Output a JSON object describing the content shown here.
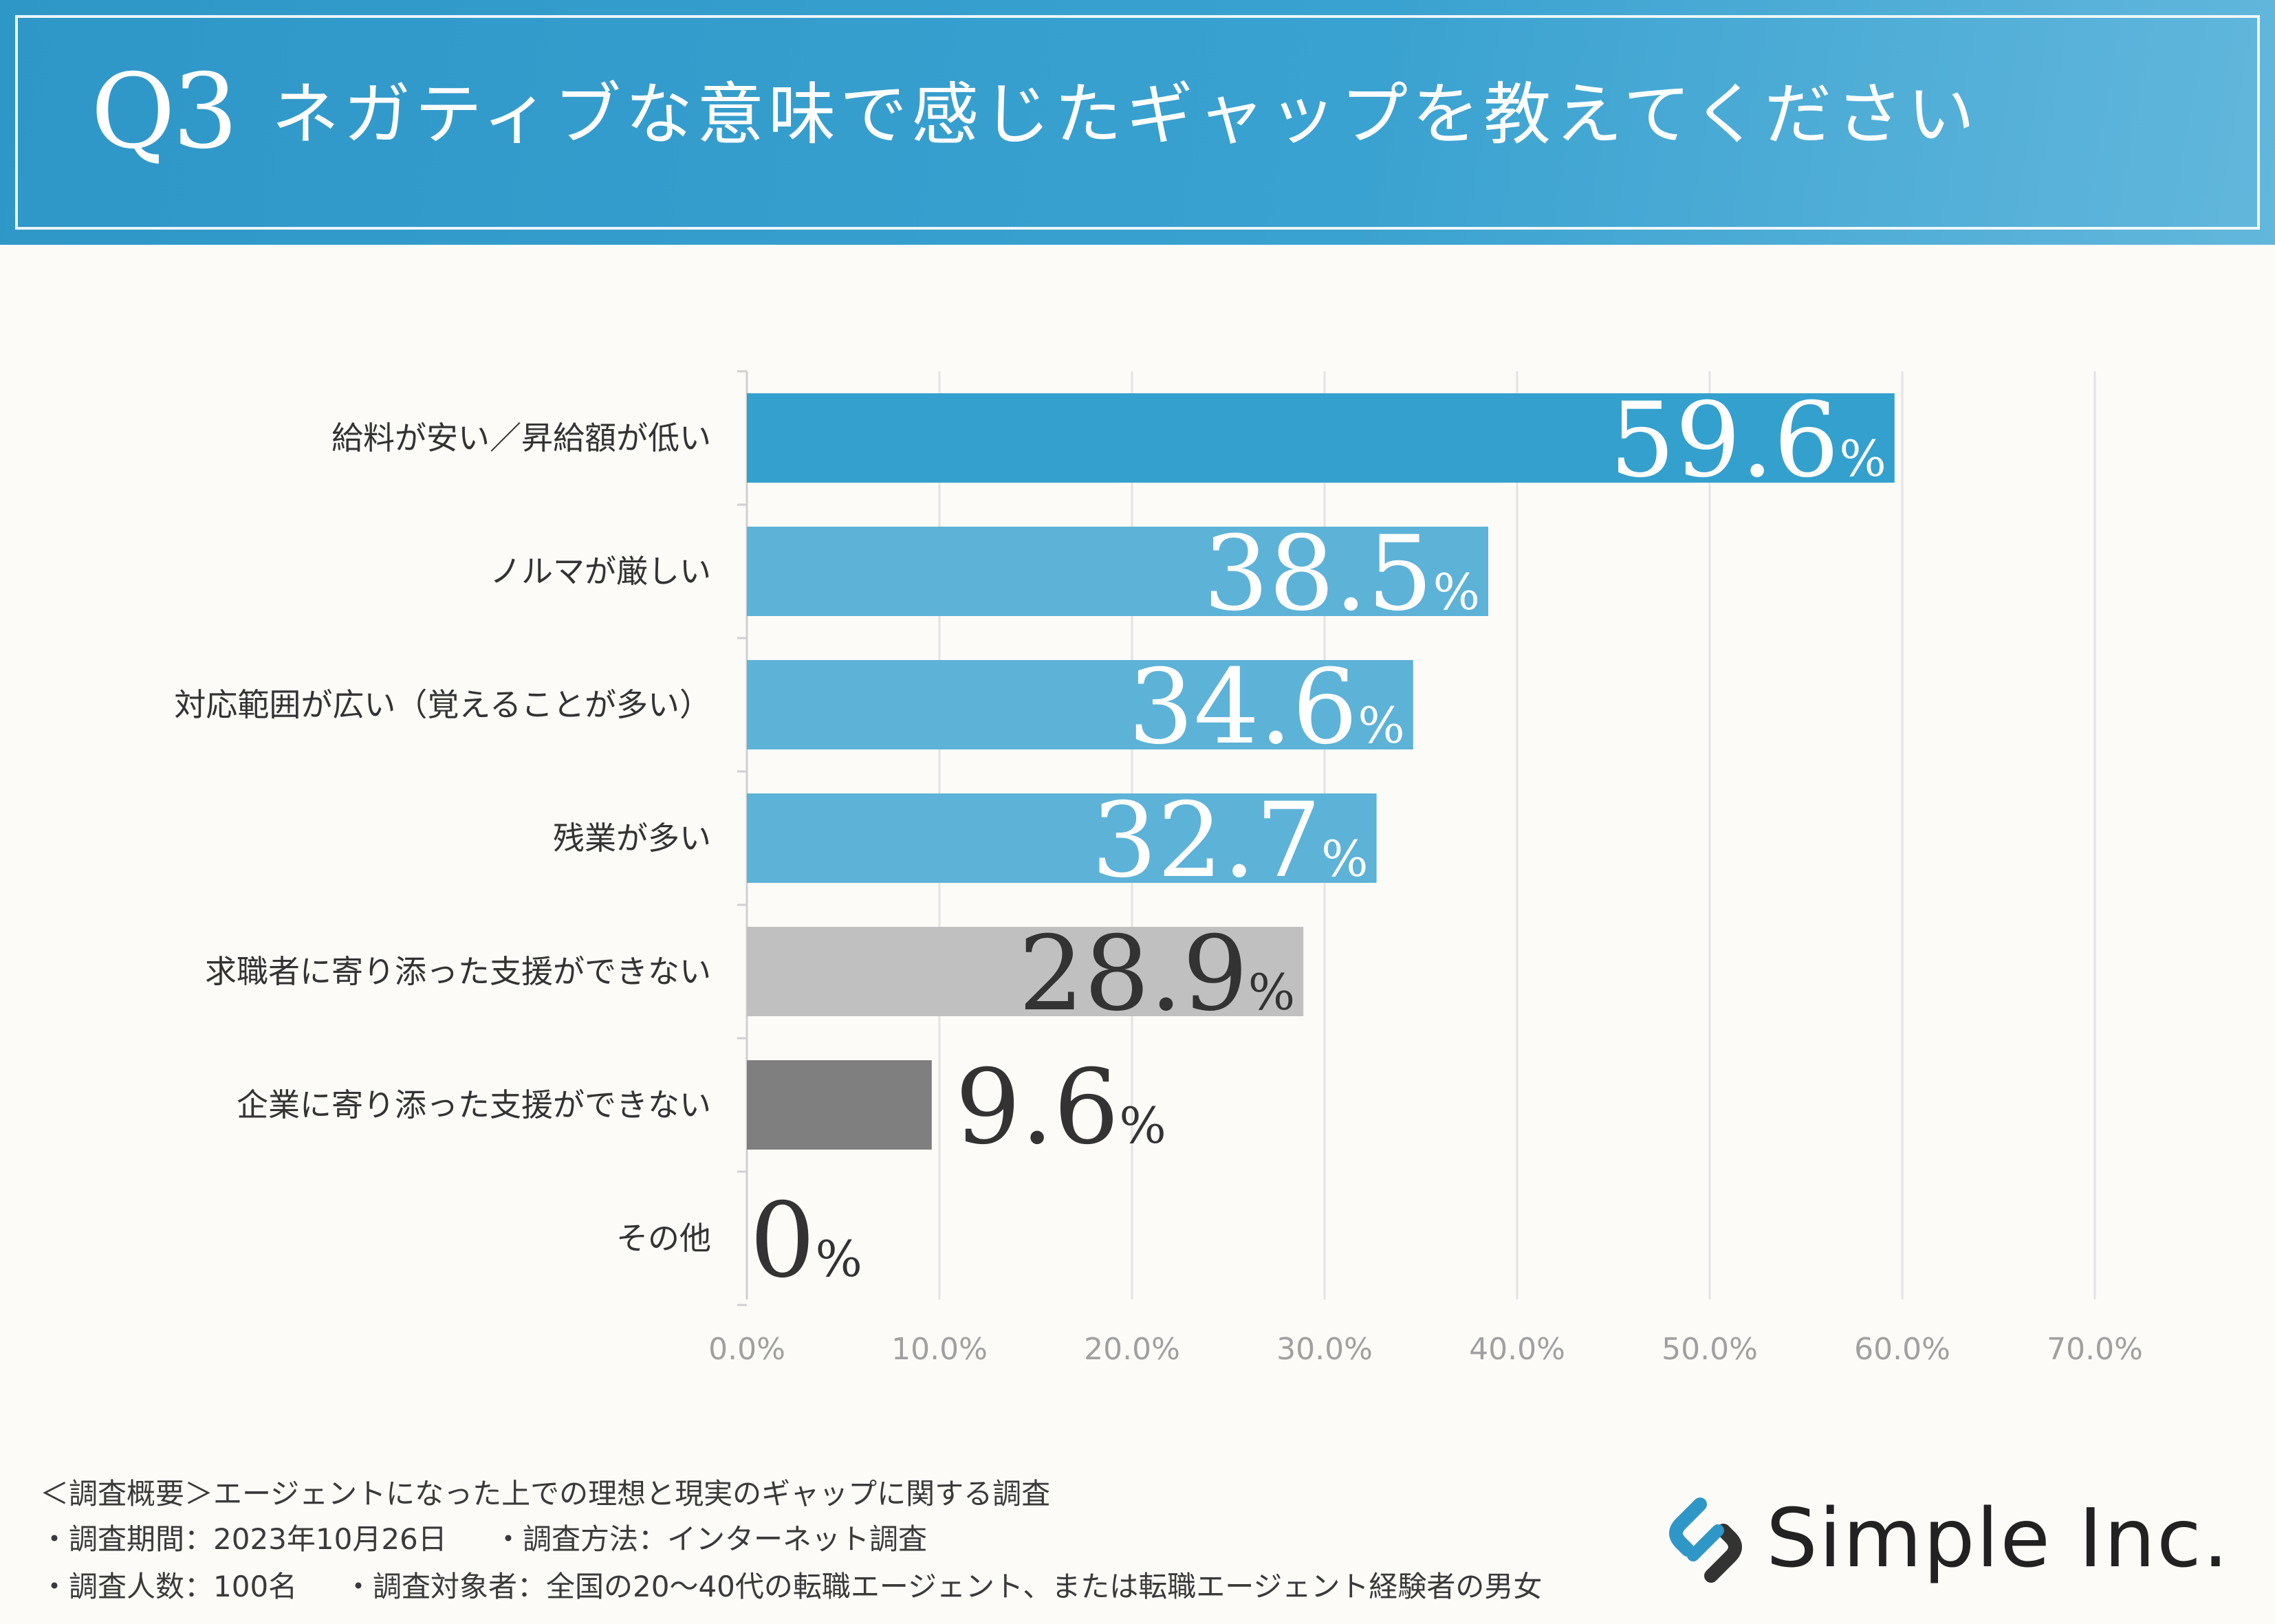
{
  "header": {
    "question_number": "Q3",
    "title": "ネガティブな意味で感じたギャップを教えてください"
  },
  "chart_data": {
    "type": "bar",
    "orientation": "horizontal",
    "title": "ネガティブな意味で感じたギャップを教えてください",
    "categories": [
      "給料が安い／昇給額が低い",
      "ノルマが厳しい",
      "対応範囲が広い（覚えることが多い）",
      "残業が多い",
      "求職者に寄り添った支援ができない",
      "企業に寄り添った支援ができない",
      "その他"
    ],
    "values": [
      59.6,
      38.5,
      34.6,
      32.7,
      28.9,
      9.6,
      0
    ],
    "value_labels": [
      "59.6",
      "38.5",
      "34.6",
      "32.7",
      "28.9",
      "9.6",
      "0"
    ],
    "unit": "%",
    "bar_colors": [
      "#34a0cd",
      "#5db2d7",
      "#5db2d7",
      "#5db2d7",
      "#c0c0c0",
      "#7f7f7f",
      "#7f7f7f"
    ],
    "label_colors": [
      "#ffffff",
      "#ffffff",
      "#ffffff",
      "#ffffff",
      "#333333",
      "#333333",
      "#333333"
    ],
    "xlim": [
      0,
      70
    ],
    "xticks": [
      "0.0%",
      "10.0%",
      "20.0%",
      "30.0%",
      "40.0%",
      "50.0%",
      "60.0%",
      "70.0%"
    ],
    "grid": true
  },
  "footer": {
    "survey_title": "＜調査概要＞エージェントになった上での理想と現実のギャップに関する調査",
    "survey_period": "・調査期間：2023年10月26日",
    "survey_method": "・調査方法：インターネット調査",
    "survey_count": "・調査人数：100名",
    "survey_target": "・調査対象者：全国の20～40代の転職エージェント、または転職エージェント経験者の男女"
  },
  "logo": {
    "text": "Simple Inc.",
    "icon": "link-chain-icon"
  },
  "colors": {
    "header": "#2f97c8",
    "background": "#fcfbf8"
  }
}
